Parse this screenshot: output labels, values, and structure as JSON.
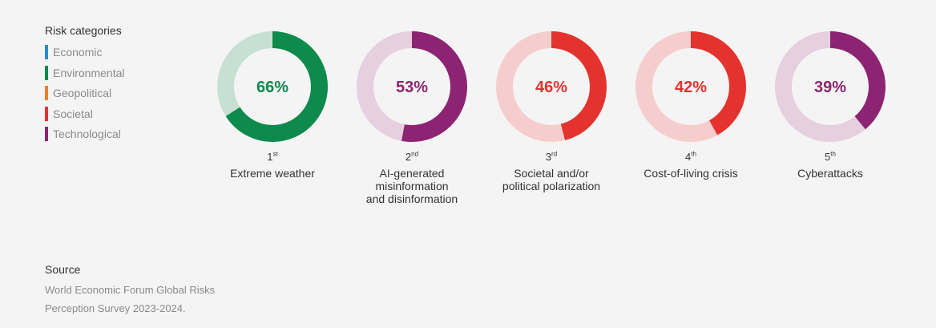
{
  "legend": {
    "title": "Risk categories",
    "items": [
      {
        "label": "Economic",
        "color": "#2a8bd0"
      },
      {
        "label": "Environmental",
        "color": "#0d8a4c"
      },
      {
        "label": "Geopolitical",
        "color": "#ef7d2d"
      },
      {
        "label": "Societal",
        "color": "#e4332e"
      },
      {
        "label": "Technological",
        "color": "#8d2473"
      }
    ]
  },
  "chart_data": {
    "type": "donut",
    "items": [
      {
        "rank": "1",
        "rank_suffix": "st",
        "label": "Extreme weather",
        "value": 66,
        "value_label": "66%",
        "category": "Environmental",
        "color": "#0d8a4c",
        "track_color": "#c6e1d4"
      },
      {
        "rank": "2",
        "rank_suffix": "nd",
        "label": "AI-generated\nmisinformation\nand disinformation",
        "value": 53,
        "value_label": "53%",
        "category": "Technological",
        "color": "#8d2473",
        "track_color": "#e6cfdf"
      },
      {
        "rank": "3",
        "rank_suffix": "rd",
        "label": "Societal and/or\npolitical polarization",
        "value": 46,
        "value_label": "46%",
        "category": "Societal",
        "color": "#e4332e",
        "track_color": "#f5cdcc"
      },
      {
        "rank": "4",
        "rank_suffix": "th",
        "label": "Cost-of-living crisis",
        "value": 42,
        "value_label": "42%",
        "category": "Societal",
        "color": "#e4332e",
        "track_color": "#f5cdcc"
      },
      {
        "rank": "5",
        "rank_suffix": "th",
        "label": "Cyberattacks",
        "value": 39,
        "value_label": "39%",
        "category": "Technological",
        "color": "#8d2473",
        "track_color": "#e6cfdf"
      }
    ]
  },
  "source": {
    "title": "Source",
    "text": "World Economic Forum Global Risks\nPerception Survey 2023-2024."
  }
}
